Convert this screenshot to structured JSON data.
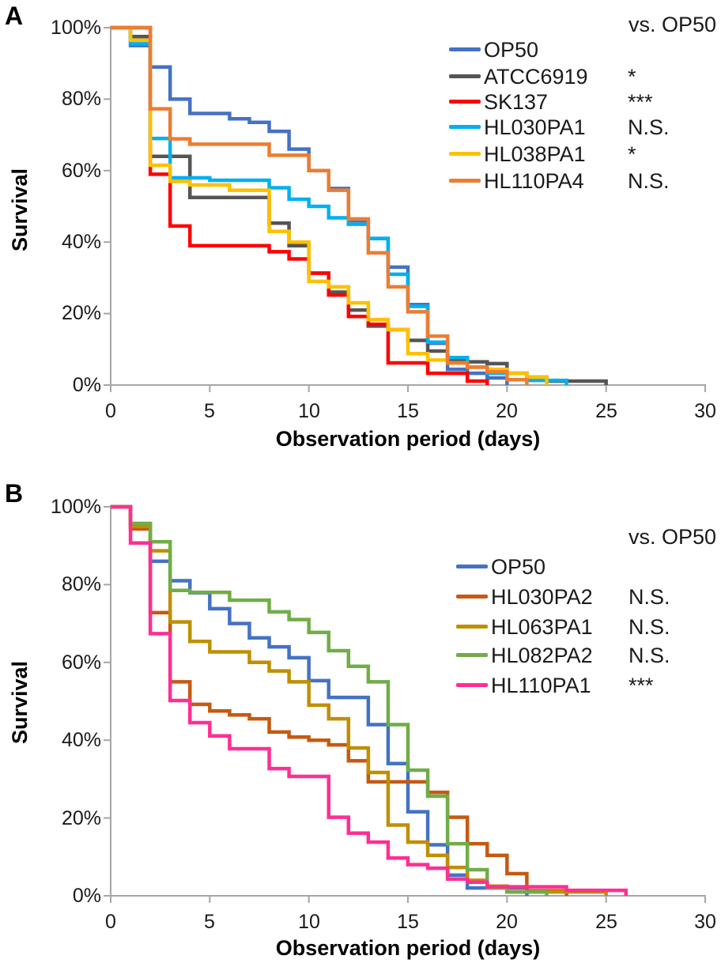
{
  "figure": {
    "panel_a_letter": "A",
    "panel_b_letter": "B"
  },
  "chart_data": [
    {
      "panel": "A",
      "type": "line",
      "subtype": "survival-step",
      "title": "",
      "xlabel": "Observation period (days)",
      "ylabel": "Survival",
      "xlim": [
        0,
        30
      ],
      "ylim": [
        0,
        100
      ],
      "x_ticks": [
        "0",
        "5",
        "10",
        "15",
        "20",
        "25",
        "30"
      ],
      "y_ticks": [
        "100%",
        "80%",
        "60%",
        "40%",
        "20%",
        "0%"
      ],
      "grid": "off",
      "legend_position": "upper right",
      "legend_header": "vs. OP50",
      "series": [
        {
          "name": "OP50",
          "color": "#4472C4",
          "vs_op50": "",
          "steps": [
            [
              0,
              100
            ],
            [
              1,
              95
            ],
            [
              2,
              89
            ],
            [
              3,
              80
            ],
            [
              4,
              76
            ],
            [
              6,
              74.5
            ],
            [
              7,
              73.5
            ],
            [
              8,
              71
            ],
            [
              9,
              66
            ],
            [
              10,
              60
            ],
            [
              11,
              55
            ],
            [
              12,
              46
            ],
            [
              13,
              41
            ],
            [
              14,
              33
            ],
            [
              15,
              22.5
            ],
            [
              16,
              11.7
            ],
            [
              17,
              4.4
            ],
            [
              18,
              3.3
            ],
            [
              19,
              2
            ],
            [
              20,
              0
            ]
          ]
        },
        {
          "name": "ATCC6919",
          "color": "#555555",
          "vs_op50": "*",
          "steps": [
            [
              0,
              100
            ],
            [
              1,
              97.5
            ],
            [
              2,
              64
            ],
            [
              4,
              52.5
            ],
            [
              8,
              45.3
            ],
            [
              9,
              39
            ],
            [
              10,
              31.3
            ],
            [
              11,
              26
            ],
            [
              12,
              21
            ],
            [
              13,
              16.5
            ],
            [
              14,
              15.5
            ],
            [
              15,
              12.5
            ],
            [
              16,
              9.5
            ],
            [
              17,
              7
            ],
            [
              18,
              6.5
            ],
            [
              19,
              6
            ],
            [
              20,
              3.3
            ],
            [
              21,
              2.2
            ],
            [
              22,
              1.1
            ],
            [
              25,
              0
            ]
          ]
        },
        {
          "name": "SK137",
          "color": "#FF0000",
          "vs_op50": "***",
          "steps": [
            [
              0,
              100
            ],
            [
              2,
              59
            ],
            [
              3,
              44.5
            ],
            [
              4,
              39
            ],
            [
              8,
              37.3
            ],
            [
              9,
              35.3
            ],
            [
              10,
              31.3
            ],
            [
              11,
              25.2
            ],
            [
              12,
              19.2
            ],
            [
              13,
              17
            ],
            [
              14,
              6.2
            ],
            [
              16,
              3.3
            ],
            [
              18,
              1.1
            ],
            [
              19,
              0
            ]
          ]
        },
        {
          "name": "HL030PA1",
          "color": "#00B0F0",
          "vs_op50": "N.S.",
          "steps": [
            [
              0,
              100
            ],
            [
              1,
              95.5
            ],
            [
              2,
              69
            ],
            [
              3,
              58
            ],
            [
              5,
              57.3
            ],
            [
              8,
              55.2
            ],
            [
              9,
              52
            ],
            [
              10,
              50
            ],
            [
              11,
              46.8
            ],
            [
              12,
              45
            ],
            [
              13,
              41
            ],
            [
              14,
              31
            ],
            [
              15,
              22
            ],
            [
              16,
              12
            ],
            [
              17,
              7.7
            ],
            [
              18,
              5
            ],
            [
              19,
              3.3
            ],
            [
              21,
              1.3
            ],
            [
              23,
              0
            ]
          ]
        },
        {
          "name": "HL038PA1",
          "color": "#FFC000",
          "vs_op50": "*",
          "steps": [
            [
              0,
              100
            ],
            [
              1,
              96.5
            ],
            [
              2,
              61.5
            ],
            [
              3,
              57
            ],
            [
              4,
              56
            ],
            [
              6,
              54.5
            ],
            [
              8,
              43
            ],
            [
              9,
              40
            ],
            [
              10,
              29
            ],
            [
              11,
              27.5
            ],
            [
              12,
              23
            ],
            [
              13,
              18.3
            ],
            [
              14,
              15.5
            ],
            [
              15,
              8.8
            ],
            [
              16,
              7
            ],
            [
              17,
              6.2
            ],
            [
              18,
              5
            ],
            [
              19,
              4.4
            ],
            [
              20,
              3.3
            ],
            [
              21,
              2.2
            ],
            [
              22,
              0
            ]
          ]
        },
        {
          "name": "HL110PA4",
          "color": "#ED7D31",
          "vs_op50": "N.S.",
          "steps": [
            [
              0,
              100
            ],
            [
              2,
              77.3
            ],
            [
              3,
              68.9
            ],
            [
              4,
              67.4
            ],
            [
              8,
              64.3
            ],
            [
              10,
              60
            ],
            [
              11,
              54.5
            ],
            [
              12,
              46.5
            ],
            [
              13,
              37
            ],
            [
              14,
              27.5
            ],
            [
              15,
              20.5
            ],
            [
              16,
              13.7
            ],
            [
              17,
              6.2
            ],
            [
              18,
              5
            ],
            [
              19,
              3.7
            ],
            [
              20,
              1.5
            ],
            [
              21,
              0
            ]
          ]
        }
      ]
    },
    {
      "panel": "B",
      "type": "line",
      "subtype": "survival-step",
      "title": "",
      "xlabel": "Observation period (days)",
      "ylabel": "Survival",
      "xlim": [
        0,
        30
      ],
      "ylim": [
        0,
        100
      ],
      "x_ticks": [
        "0",
        "5",
        "10",
        "15",
        "20",
        "25",
        "30"
      ],
      "y_ticks": [
        "100%",
        "80%",
        "60%",
        "40%",
        "20%",
        "0%"
      ],
      "grid": "off",
      "legend_position": "upper right",
      "legend_header": "vs. OP50",
      "series": [
        {
          "name": "OP50",
          "color": "#4472C4",
          "vs_op50": "",
          "steps": [
            [
              0,
              100
            ],
            [
              1,
              95.7
            ],
            [
              2,
              86
            ],
            [
              3,
              81
            ],
            [
              4,
              77.9
            ],
            [
              5,
              73.8
            ],
            [
              6,
              70
            ],
            [
              7,
              66.3
            ],
            [
              8,
              64
            ],
            [
              9,
              61.2
            ],
            [
              10,
              55.3
            ],
            [
              11,
              51
            ],
            [
              13,
              44
            ],
            [
              14,
              34
            ],
            [
              15,
              21.6
            ],
            [
              16,
              13.1
            ],
            [
              17,
              5.3
            ],
            [
              18,
              2
            ],
            [
              21,
              0
            ]
          ]
        },
        {
          "name": "HL030PA2",
          "color": "#C55A11",
          "vs_op50": "N.S.",
          "steps": [
            [
              0,
              100
            ],
            [
              1,
              94.3
            ],
            [
              2,
              72.8
            ],
            [
              3,
              55
            ],
            [
              4,
              49.2
            ],
            [
              5,
              47.5
            ],
            [
              6,
              46.5
            ],
            [
              7,
              45.5
            ],
            [
              8,
              42.1
            ],
            [
              9,
              40.8
            ],
            [
              10,
              40
            ],
            [
              11,
              38.8
            ],
            [
              12,
              34.7
            ],
            [
              13,
              29.3
            ],
            [
              16,
              26.6
            ],
            [
              17,
              20.2
            ],
            [
              18,
              13.4
            ],
            [
              19,
              10.4
            ],
            [
              20,
              5.7
            ],
            [
              21,
              1.3
            ],
            [
              23,
              0
            ]
          ]
        },
        {
          "name": "HL063PA1",
          "color": "#BF8F00",
          "vs_op50": "N.S.",
          "steps": [
            [
              0,
              100
            ],
            [
              1,
              95
            ],
            [
              2,
              88.7
            ],
            [
              3,
              70.4
            ],
            [
              4,
              65.4
            ],
            [
              5,
              62.7
            ],
            [
              7,
              60
            ],
            [
              8,
              57.8
            ],
            [
              9,
              55
            ],
            [
              10,
              49
            ],
            [
              11,
              45.5
            ],
            [
              12,
              38
            ],
            [
              13,
              31.7
            ],
            [
              14,
              18.2
            ],
            [
              15,
              13.8
            ],
            [
              16,
              10.4
            ],
            [
              17,
              7.3
            ],
            [
              18,
              4
            ],
            [
              19,
              2.5
            ],
            [
              20,
              1
            ],
            [
              25,
              0
            ]
          ]
        },
        {
          "name": "HL082PA2",
          "color": "#70AD47",
          "vs_op50": "N.S.",
          "steps": [
            [
              0,
              100
            ],
            [
              1,
              95.7
            ],
            [
              2,
              91
            ],
            [
              3,
              78.5
            ],
            [
              4,
              78
            ],
            [
              6,
              76
            ],
            [
              8,
              73
            ],
            [
              9,
              71
            ],
            [
              10,
              67.7
            ],
            [
              11,
              63
            ],
            [
              12,
              59
            ],
            [
              13,
              55
            ],
            [
              14,
              44
            ],
            [
              15,
              32.3
            ],
            [
              16,
              25.6
            ],
            [
              17,
              13.4
            ],
            [
              18,
              6.7
            ],
            [
              19,
              2
            ],
            [
              20,
              1
            ],
            [
              22,
              0
            ]
          ]
        },
        {
          "name": "HL110PA1",
          "color": "#FF2E92",
          "vs_op50": "***",
          "steps": [
            [
              0,
              100
            ],
            [
              1,
              90.7
            ],
            [
              2,
              67.4
            ],
            [
              3,
              50.2
            ],
            [
              4,
              44.5
            ],
            [
              5,
              41.1
            ],
            [
              6,
              37.8
            ],
            [
              8,
              32.7
            ],
            [
              9,
              30.7
            ],
            [
              11,
              20.2
            ],
            [
              12,
              16.1
            ],
            [
              13,
              13.8
            ],
            [
              14,
              9.7
            ],
            [
              15,
              8
            ],
            [
              16,
              7.1
            ],
            [
              17,
              4.3
            ],
            [
              18,
              3.5
            ],
            [
              19,
              2.3
            ],
            [
              23,
              1.4
            ],
            [
              26,
              0
            ]
          ]
        }
      ]
    }
  ]
}
